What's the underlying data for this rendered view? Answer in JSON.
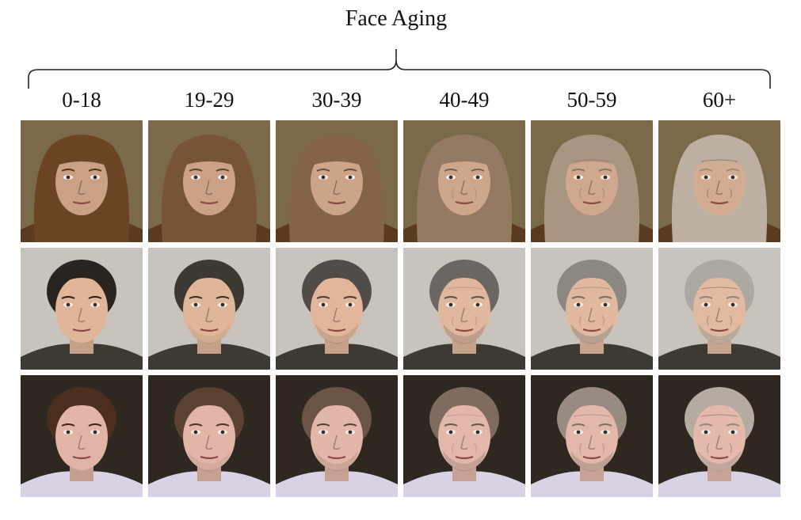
{
  "title": "Face Aging",
  "age_groups": [
    "0-18",
    "19-29",
    "30-39",
    "40-49",
    "50-59",
    "60+"
  ],
  "subjects": [
    {
      "background": "#7a6a4a",
      "hair": "#6b4423",
      "skin": "#caa184",
      "clothing": "#5a3b20",
      "hair_style": "bangs"
    },
    {
      "background": "#c9c3bd",
      "hair": "#2a2420",
      "skin": "#e0b598",
      "clothing": "#3d3a33",
      "hair_style": "short"
    },
    {
      "background": "#2e2820",
      "hair": "#4b2e1e",
      "skin": "#e2b4a6",
      "clothing": "#d8d2e4",
      "hair_style": "short"
    }
  ],
  "aging_levels": [
    0,
    0.15,
    0.3,
    0.5,
    0.75,
    1.0
  ]
}
